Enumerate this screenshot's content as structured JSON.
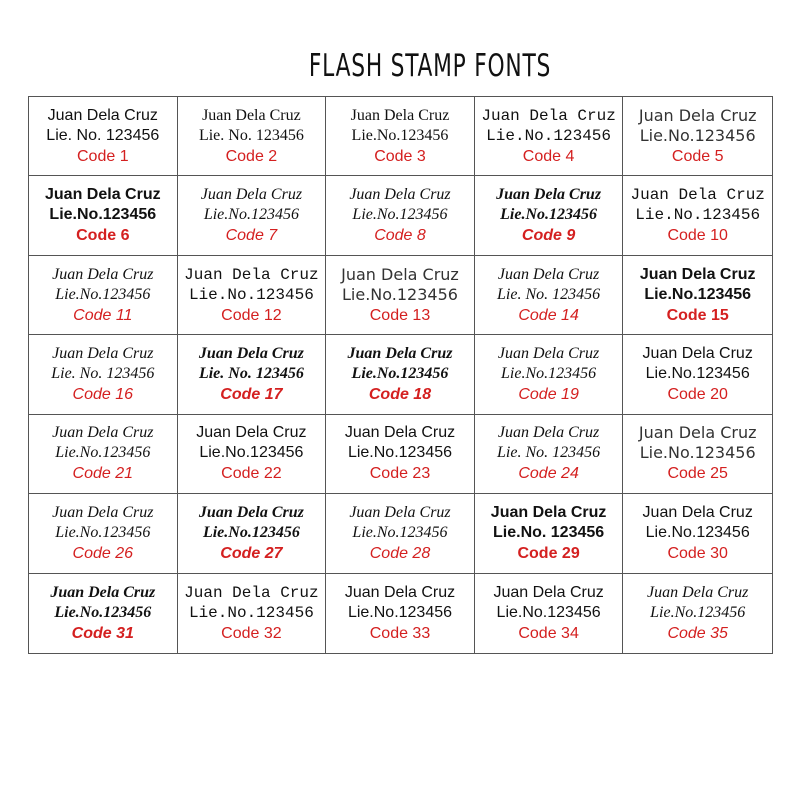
{
  "title": "FLASH STAMP FONTS",
  "colors": {
    "code": "#d42020",
    "text": "#111111",
    "grid": "#555555"
  },
  "cells": [
    {
      "line1": "Juan Dela Cruz",
      "line2": "Lie. No. 123456",
      "code": "Code 1"
    },
    {
      "line1": "Juan Dela Cruz",
      "line2": "Lie. No. 123456",
      "code": "Code 2"
    },
    {
      "line1": "Juan Dela Cruz",
      "line2": "Lie.No.123456",
      "code": "Code 3"
    },
    {
      "line1": "Juan Dela Cruz",
      "line2": "Lie.No.123456",
      "code": "Code 4"
    },
    {
      "line1": "Juan Dela Cruz",
      "line2": "Lie.No.123456",
      "code": "Code 5"
    },
    {
      "line1": "Juan Dela Cruz",
      "line2": "Lie.No.123456",
      "code": "Code 6"
    },
    {
      "line1": "Juan Dela Cruz",
      "line2": "Lie.No.123456",
      "code": "Code 7"
    },
    {
      "line1": "Juan Dela Cruz",
      "line2": "Lie.No.123456",
      "code": "Code 8"
    },
    {
      "line1": "Juan Dela Cruz",
      "line2": "Lie.No.123456",
      "code": "Code 9"
    },
    {
      "line1": "Juan Dela Cruz",
      "line2": "Lie.No.123456",
      "code": "Code 10"
    },
    {
      "line1": "Juan Dela Cruz",
      "line2": "Lie.No.123456",
      "code": "Code 11"
    },
    {
      "line1": "Juan Dela Cruz",
      "line2": "Lie.No.123456",
      "code": "Code 12"
    },
    {
      "line1": "Juan Dela Cruz",
      "line2": "Lie.No.123456",
      "code": "Code 13"
    },
    {
      "line1": "Juan Dela Cruz",
      "line2": "Lie. No. 123456",
      "code": "Code 14"
    },
    {
      "line1": "Juan Dela Cruz",
      "line2": "Lie.No.123456",
      "code": "Code 15"
    },
    {
      "line1": "Juan Dela Cruz",
      "line2": "Lie. No. 123456",
      "code": "Code 16"
    },
    {
      "line1": "Juan Dela Cruz",
      "line2": "Lie. No. 123456",
      "code": "Code 17"
    },
    {
      "line1": "Juan Dela Cruz",
      "line2": "Lie.No.123456",
      "code": "Code 18"
    },
    {
      "line1": "Juan Dela Cruz",
      "line2": "Lie.No.123456",
      "code": "Code 19"
    },
    {
      "line1": "Juan Dela Cruz",
      "line2": "Lie.No.123456",
      "code": "Code 20"
    },
    {
      "line1": "Juan Dela Cruz",
      "line2": "Lie.No.123456",
      "code": "Code 21"
    },
    {
      "line1": "Juan Dela Cruz",
      "line2": "Lie.No.123456",
      "code": "Code 22"
    },
    {
      "line1": "Juan Dela Cruz",
      "line2": "Lie.No.123456",
      "code": "Code 23"
    },
    {
      "line1": "Juan Dela Cruz",
      "line2": "Lie. No. 123456",
      "code": "Code 24"
    },
    {
      "line1": "Juan Dela Cruz",
      "line2": "Lie.No.123456",
      "code": "Code 25"
    },
    {
      "line1": "Juan Dela Cruz",
      "line2": "Lie.No.123456",
      "code": "Code 26"
    },
    {
      "line1": "Juan Dela Cruz",
      "line2": "Lie.No.123456",
      "code": "Code 27"
    },
    {
      "line1": "Juan Dela Cruz",
      "line2": "Lie.No.123456",
      "code": "Code 28"
    },
    {
      "line1": "Juan Dela Cruz",
      "line2": "Lie.No. 123456",
      "code": "Code 29"
    },
    {
      "line1": "Juan Dela Cruz",
      "line2": "Lie.No.123456",
      "code": "Code 30"
    },
    {
      "line1": "Juan Dela Cruz",
      "line2": "Lie.No.123456",
      "code": "Code 31"
    },
    {
      "line1": "Juan Dela Cruz",
      "line2": "Lie.No.123456",
      "code": "Code 32"
    },
    {
      "line1": "Juan Dela Cruz",
      "line2": "Lie.No.123456",
      "code": "Code 33"
    },
    {
      "line1": "Juan Dela Cruz",
      "line2": "Lie.No.123456",
      "code": "Code 34"
    },
    {
      "line1": "Juan Dela Cruz",
      "line2": "Lie.No.123456",
      "code": "Code 35"
    }
  ]
}
